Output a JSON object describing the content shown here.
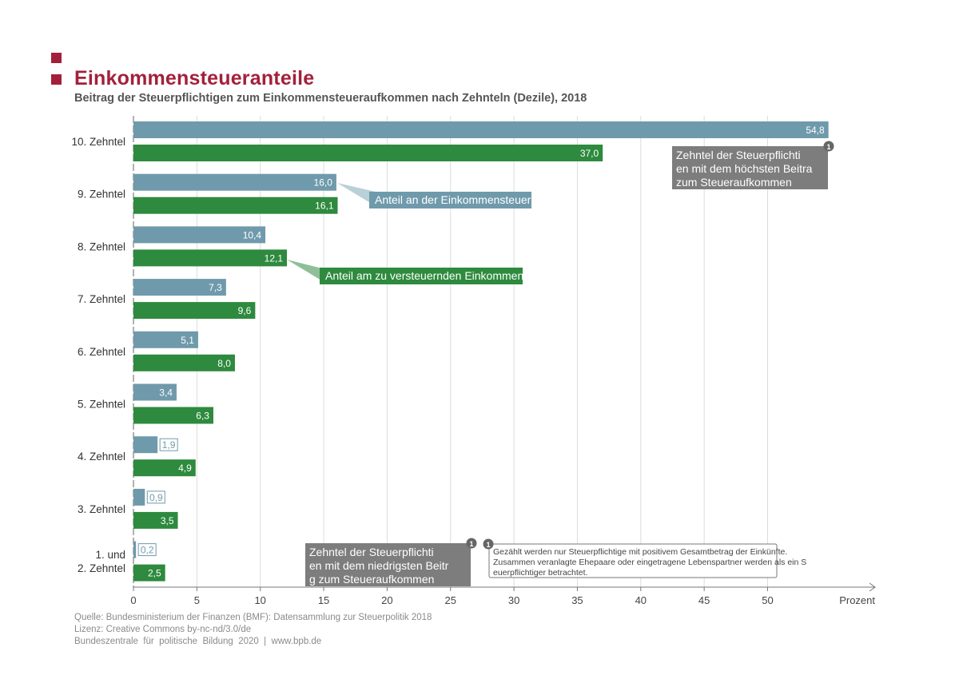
{
  "header": {
    "title": "Einkommensteueranteile",
    "subtitle": "Beitrag der Steuerpflichtigen zum Einkommensteueraufkommen nach Zehnteln (Dezile), 2018",
    "accent_color": "#a3203b"
  },
  "chart_data": {
    "type": "bar",
    "orientation": "horizontal",
    "categories": [
      "10. Zehntel",
      "9. Zehntel",
      "8. Zehntel",
      "7. Zehntel",
      "6. Zehntel",
      "5. Zehntel",
      "4. Zehntel",
      "3. Zehntel",
      "1. und 2. Zehntel"
    ],
    "series": [
      {
        "name": "Anteil an der Einkommensteuer",
        "color": "#6f9aab",
        "values": [
          54.8,
          16.0,
          10.4,
          7.3,
          5.1,
          3.4,
          1.9,
          0.9,
          0.2
        ],
        "labels": [
          "54,8",
          "16,0",
          "10,4",
          "7,3",
          "5,1",
          "3,4",
          "1,9",
          "0,9",
          "0,2"
        ]
      },
      {
        "name": "Anteil am zu versteuernden Einkommen",
        "color": "#2e8a3e",
        "values": [
          37.0,
          16.1,
          12.1,
          9.6,
          8.0,
          6.3,
          4.9,
          3.5,
          2.5
        ],
        "labels": [
          "37,0",
          "16,1",
          "12,1",
          "9,6",
          "8,0",
          "6,3",
          "4,9",
          "3,5",
          "2,5"
        ]
      }
    ],
    "xlabel": "Prozent",
    "xlim": [
      0,
      55
    ],
    "xticks": [
      0,
      5,
      10,
      15,
      20,
      25,
      30,
      35,
      40,
      45,
      50
    ],
    "grid": true,
    "annotations": {
      "top_decile": "Zehntel der Steuerpflichtigen mit dem höchsten Beitrag zum Steueraufkommen",
      "bottom_deciles": "Zehntel der Steuerpflichtigen mit dem niedrigsten Beitrag zum Steueraufkommen",
      "footnote_marker": "1",
      "footnote": "Gezählt werden nur Steuerpflichtige mit positivem Gesamtbetrag der Einkünfte. Zusammen veranlagte Ehepaare oder eingetragene Lebenspartner werden als ein Steuerpflichtiger betrachtet."
    }
  },
  "footer": {
    "source": "Quelle: Bundesministerium der Finanzen (BMF): Datensammlung zur Steuerpolitik 2018",
    "license": "Lizenz: Creative Commons by-nc-nd/3.0/de",
    "publisher": "Bundeszentrale  für  politische  Bildung  2020  |  www.bpb.de"
  }
}
